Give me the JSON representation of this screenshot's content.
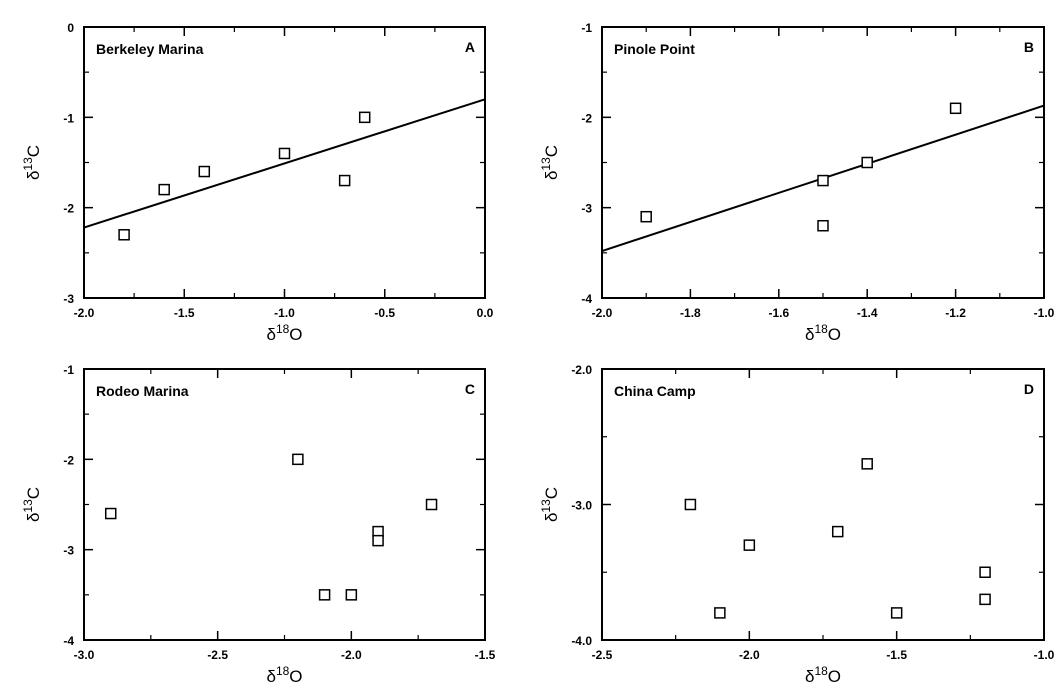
{
  "chart_data": [
    {
      "type": "scatter",
      "title": "Berkeley Marina",
      "panel_letter": "A",
      "xlabel": {
        "prefix": "δ",
        "sup": "18",
        "main": "O"
      },
      "ylabel": {
        "prefix": "δ",
        "sup": "13",
        "main": "C"
      },
      "xlim": [
        -2.0,
        0.0
      ],
      "ylim": [
        -3,
        0
      ],
      "xticks": [
        "-2.0",
        "-1.5",
        "-1.0",
        "-0.5",
        "0.0"
      ],
      "xtick_values": [
        -2.0,
        -1.5,
        -1.0,
        -0.5,
        0.0
      ],
      "yticks": [
        "-3",
        "-2",
        "-1",
        "0"
      ],
      "ytick_values": [
        -3,
        -2,
        -1,
        0
      ],
      "points": [
        [
          -1.8,
          -2.3
        ],
        [
          -1.6,
          -1.8
        ],
        [
          -1.4,
          -1.6
        ],
        [
          -1.0,
          -1.4
        ],
        [
          -0.7,
          -1.7
        ],
        [
          -0.6,
          -1.0
        ]
      ],
      "regression_line": [
        [
          -2.0,
          -2.22
        ],
        [
          0.0,
          -0.8
        ]
      ],
      "marker": "open-square",
      "grid": false
    },
    {
      "type": "scatter",
      "title": "Pinole Point",
      "panel_letter": "B",
      "xlabel": {
        "prefix": "δ",
        "sup": "18",
        "main": "O"
      },
      "ylabel": {
        "prefix": "δ",
        "sup": "13",
        "main": "C"
      },
      "xlim": [
        -2.0,
        -1.0
      ],
      "ylim": [
        -4,
        -1
      ],
      "xticks": [
        "-2.0",
        "-1.8",
        "-1.6",
        "-1.4",
        "-1.2",
        "-1.0"
      ],
      "xtick_values": [
        -2.0,
        -1.8,
        -1.6,
        -1.4,
        -1.2,
        -1.0
      ],
      "yticks": [
        "-4",
        "-3",
        "-2",
        "-1"
      ],
      "ytick_values": [
        -4,
        -3,
        -2,
        -1
      ],
      "points": [
        [
          -1.9,
          -3.1
        ],
        [
          -1.5,
          -2.7
        ],
        [
          -1.5,
          -3.2
        ],
        [
          -1.4,
          -2.5
        ],
        [
          -1.2,
          -1.9
        ]
      ],
      "regression_line": [
        [
          -2.0,
          -3.48
        ],
        [
          -1.0,
          -1.87
        ]
      ],
      "marker": "open-square",
      "grid": false
    },
    {
      "type": "scatter",
      "title": "Rodeo Marina",
      "panel_letter": "C",
      "xlabel": {
        "prefix": "δ",
        "sup": "18",
        "main": "O"
      },
      "ylabel": {
        "prefix": "δ",
        "sup": "13",
        "main": "C"
      },
      "xlim": [
        -3.0,
        -1.5
      ],
      "ylim": [
        -4,
        -1
      ],
      "xticks": [
        "-3.0",
        "-2.5",
        "-2.0",
        "-1.5"
      ],
      "xtick_values": [
        -3.0,
        -2.5,
        -2.0,
        -1.5
      ],
      "yticks": [
        "-4",
        "-3",
        "-2",
        "-1"
      ],
      "ytick_values": [
        -4,
        -3,
        -2,
        -1
      ],
      "points": [
        [
          -2.9,
          -2.6
        ],
        [
          -2.2,
          -2.0
        ],
        [
          -2.1,
          -3.5
        ],
        [
          -2.0,
          -3.5
        ],
        [
          -1.9,
          -2.8
        ],
        [
          -1.9,
          -2.9
        ],
        [
          -1.7,
          -2.5
        ]
      ],
      "marker": "open-square",
      "grid": false
    },
    {
      "type": "scatter",
      "title": "China Camp",
      "panel_letter": "D",
      "xlabel": {
        "prefix": "δ",
        "sup": "18",
        "main": "O"
      },
      "ylabel": {
        "prefix": "δ",
        "sup": "13",
        "main": "C"
      },
      "xlim": [
        -2.5,
        -1.0
      ],
      "ylim": [
        -4.0,
        -2.0
      ],
      "xticks": [
        "-2.5",
        "-2.0",
        "-1.5",
        "-1.0"
      ],
      "xtick_values": [
        -2.5,
        -2.0,
        -1.5,
        -1.0
      ],
      "yticks": [
        "-4.0",
        "-3.0",
        "-2.0"
      ],
      "ytick_values": [
        -4.0,
        -3.0,
        -2.0
      ],
      "points": [
        [
          -2.2,
          -3.0
        ],
        [
          -2.1,
          -3.8
        ],
        [
          -2.0,
          -3.3
        ],
        [
          -1.7,
          -3.2
        ],
        [
          -1.6,
          -2.7
        ],
        [
          -1.5,
          -3.8
        ],
        [
          -1.2,
          -3.5
        ],
        [
          -1.2,
          -3.7
        ]
      ],
      "marker": "open-square",
      "grid": false
    }
  ]
}
